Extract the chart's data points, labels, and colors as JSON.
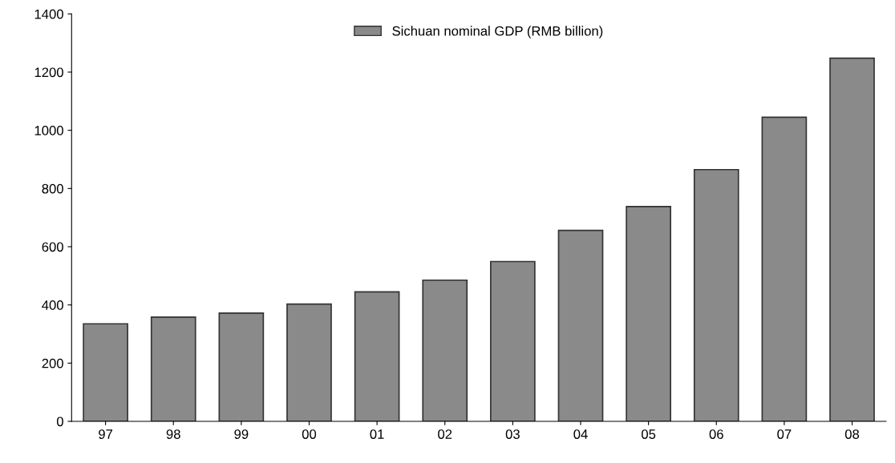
{
  "chart_data": {
    "type": "bar",
    "categories": [
      "97",
      "98",
      "99",
      "00",
      "01",
      "02",
      "03",
      "04",
      "05",
      "06",
      "07",
      "08"
    ],
    "series": [
      {
        "name": "Sichuan nominal GDP (RMB billion)",
        "color": "#8a8a8a",
        "values": [
          335,
          358,
          372,
          403,
          445,
          485,
          549,
          656,
          738,
          865,
          1045,
          1248
        ]
      }
    ],
    "ylim": [
      0,
      1400
    ],
    "yticks": [
      0,
      200,
      400,
      600,
      800,
      1000,
      1200,
      1400
    ],
    "grid": false,
    "legend": "top"
  }
}
